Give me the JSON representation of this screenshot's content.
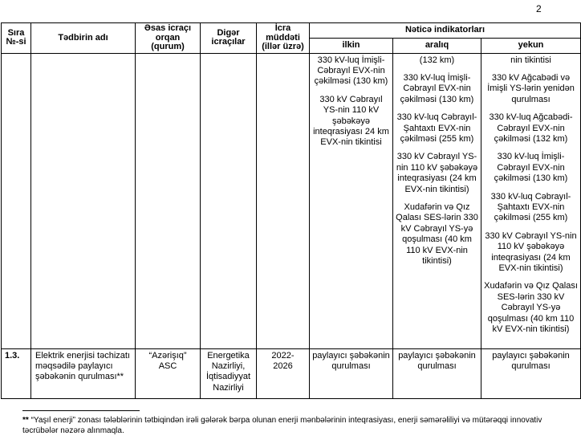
{
  "page_number": "2",
  "table": {
    "headers": {
      "sira": "Sıra\n№-si",
      "tedbir": "Tədbirin adı",
      "orqan": "Əsas icraçı\norqan\n(qurum)",
      "diger": "Digər\nicraçılar",
      "muddet": "İcra\nmüddəti\n(illər üzrə)",
      "netice_group": "Nəticə indikatorları",
      "ilkin": "ilkin",
      "araliq": "aralıq",
      "yekun": "yekun"
    },
    "rows": [
      {
        "sira": "",
        "tedbir": "",
        "orqan": "",
        "diger": "",
        "muddet": "",
        "ilkin": [
          "330 kV-luq İmişli-Cəbrayıl EVX-nin çəkilməsi (130 km)",
          "330 kV Cəbrayıl YS-nin 110 kV şəbəkəyə inteqrasiyası 24 km EVX-nin tikintisi"
        ],
        "araliq": [
          "(132 km)",
          "330 kV-luq İmişli-Cəbrayıl EVX-nin çəkilməsi (130 km)",
          "330 kV-luq Cəbrayıl- Şahtaxtı EVX-nin çəkilməsi (255 km)",
          "330 kV Cəbrayıl YS-nin 110 kV şəbəkəyə inteqrasiyası (24 km EVX-nin tikintisi)",
          "Xudafərin və Qız Qalası SES-lərin 330 kV Cəbrayıl YS-yə qoşulması (40 km 110 kV EVX-nin tikintisi)"
        ],
        "yekun": [
          "nin tikintisi",
          "330 kV Ağcabədi və İmişli YS-lərin yenidən qurulması",
          "330 kV-luq Ağcabədi-Cəbrayıl EVX-nin çəkilməsi (132 km)",
          "330 kV-luq İmişli-Cəbrayıl EVX-nin çəkilməsi (130 km)",
          "330 kV-luq Cəbrayıl-Şahtaxtı EVX-nin çəkilməsi (255 km)",
          "330 kV Cəbrayıl YS-nin 110 kV şəbəkəyə inteqrasiyası (24 km EVX-nin tikintisi)",
          "Xudafərin və Qız Qalası SES-lərin 330 kV Cəbrayıl YS-yə qoşulması (40 km 110 kV EVX-nin tikintisi)"
        ]
      },
      {
        "sira": "1.3.",
        "tedbir": "Elektrik enerjisi təchizatı məqsədilə paylayıcı şəbəkənin qurulması**",
        "orqan": "“Azərişıq”\nASC",
        "diger": "Energetika Nazirliyi, İqtisadiyyat Nazirliyi",
        "muddet": "2022-2026",
        "ilkin": [
          "paylayıcı şəbəkənin qurulması"
        ],
        "araliq": [
          "paylayıcı şəbəkənin qurulması"
        ],
        "yekun": [
          "paylayıcı şəbəkənin qurulması"
        ]
      }
    ]
  },
  "footnote": {
    "marker": "**",
    "text": "“Yaşıl enerji” zonası tələblərinin tətbiqindən irəli gələrək bərpa olunan enerji mənbələrinin inteqrasiyası, enerji səmərəliliyi və mütərəqqi innovativ təcrübələr nəzərə alınmaqla."
  }
}
